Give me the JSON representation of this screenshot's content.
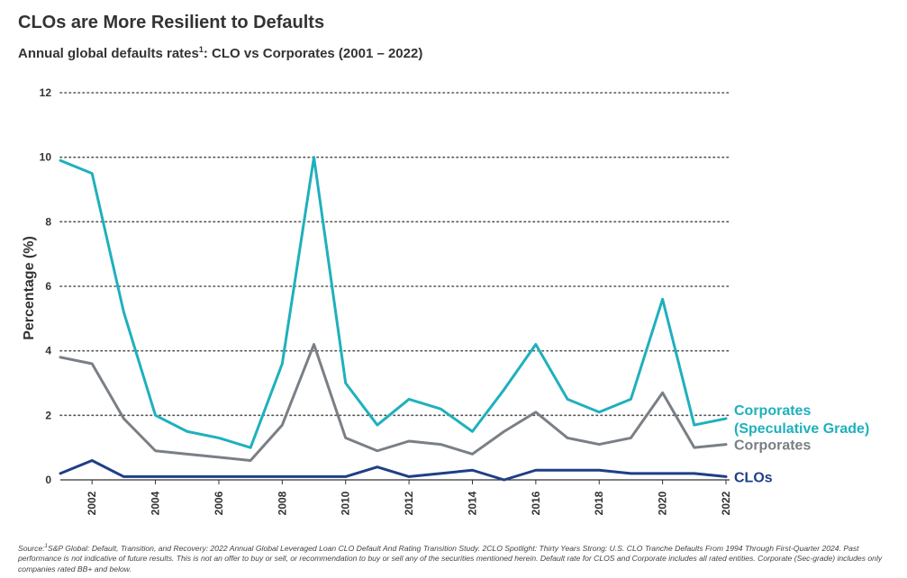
{
  "title": "CLOs are More Resilient to Defaults",
  "subtitle": {
    "text": "Annual global defaults rates",
    "sup": "1",
    "suffix": ": CLO vs Corporates (2001 – 2022)"
  },
  "source": {
    "prefix": "Source:",
    "sup": "1",
    "text": "S&P Global: Default, Transition, and Recovery: 2022 Annual Global Leveraged Loan CLO Default And Rating Transition Study. 2CLO Spotlight: Thirty Years Strong: U.S. CLO Tranche Defaults From 1994 Through First-Quarter 2024. Past performance is not indicative of future results. This is not an offer to buy or sell, or recommendation to buy or sell any of the securities mentioned herein. Default rate for CLOS and Corporate includes all rated entities. Corporate (Sec-grade) includes only companies rated BB+ and below."
  },
  "chart_data": {
    "type": "line",
    "ylabel": "Percentage (%)",
    "xlabel": "",
    "ylim": [
      0,
      12
    ],
    "yticks": [
      0,
      2,
      4,
      6,
      8,
      10,
      12
    ],
    "xlim": [
      2001,
      2022
    ],
    "xticks": [
      2002,
      2004,
      2006,
      2008,
      2010,
      2012,
      2014,
      2016,
      2018,
      2020,
      2022
    ],
    "grid": "horizontal dotted",
    "x": [
      2001,
      2002,
      2003,
      2004,
      2005,
      2006,
      2007,
      2008,
      2009,
      2010,
      2011,
      2012,
      2013,
      2014,
      2015,
      2016,
      2017,
      2018,
      2019,
      2020,
      2021,
      2022
    ],
    "series": [
      {
        "name": "Corporates (Speculative Grade)",
        "label_lines": [
          "Corporates",
          "(Speculative Grade)"
        ],
        "color": "#1fb0bd",
        "values": [
          9.9,
          9.5,
          5.2,
          2.0,
          1.5,
          1.3,
          1.0,
          3.6,
          10.0,
          3.0,
          1.7,
          2.5,
          2.2,
          1.5,
          2.8,
          4.2,
          2.5,
          2.1,
          2.5,
          5.6,
          1.7,
          1.9
        ]
      },
      {
        "name": "Corporates",
        "label_lines": [
          "Corporates"
        ],
        "color": "#7a7f86",
        "values": [
          3.8,
          3.6,
          1.9,
          0.9,
          0.8,
          0.7,
          0.6,
          1.7,
          4.2,
          1.3,
          0.9,
          1.2,
          1.1,
          0.8,
          1.5,
          2.1,
          1.3,
          1.1,
          1.3,
          2.7,
          1.0,
          1.1
        ]
      },
      {
        "name": "CLOs",
        "label_lines": [
          "CLOs"
        ],
        "color": "#1f3f86",
        "values": [
          0.2,
          0.6,
          0.1,
          0.1,
          0.1,
          0.1,
          0.1,
          0.1,
          0.1,
          0.1,
          0.4,
          0.1,
          0.2,
          0.3,
          0.0,
          0.3,
          0.3,
          0.3,
          0.2,
          0.2,
          0.2,
          0.1
        ]
      }
    ]
  }
}
